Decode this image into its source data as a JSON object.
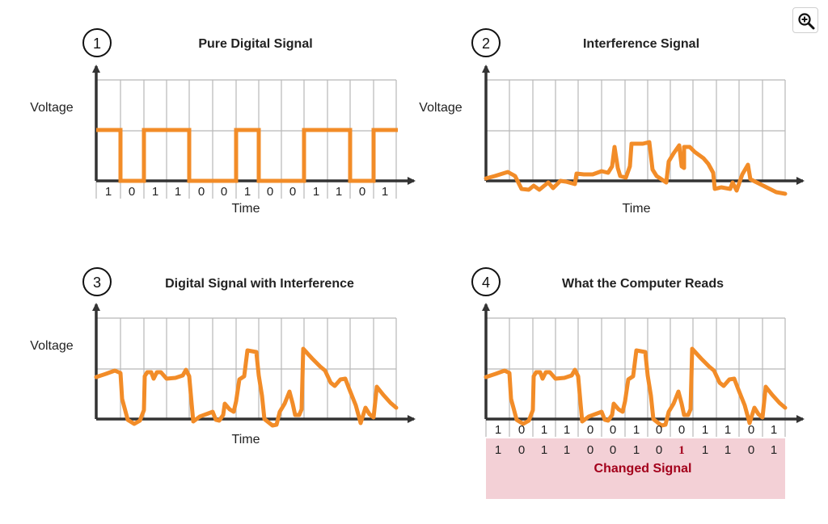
{
  "colors": {
    "signal": "#f28c28",
    "grid": "#b8b8b8",
    "axis": "#333333",
    "changed_bg": "#f3d0d6",
    "changed_text": "#a3001b"
  },
  "zoom": {
    "icon": "zoom-in-icon"
  },
  "panels": [
    {
      "number": "1",
      "title": "Pure Digital Signal",
      "ylabel": "Voltage",
      "xlabel": "Time",
      "bits": [
        "1",
        "0",
        "1",
        "1",
        "0",
        "0",
        "1",
        "0",
        "0",
        "1",
        "1",
        "0",
        "1"
      ]
    },
    {
      "number": "2",
      "title": "Interference Signal",
      "ylabel": "Voltage",
      "xlabel": "Time"
    },
    {
      "number": "3",
      "title": "Digital Signal with Interference",
      "ylabel": "Voltage",
      "xlabel": "Time"
    },
    {
      "number": "4",
      "title": "What the Computer Reads",
      "bits": [
        "1",
        "0",
        "1",
        "1",
        "0",
        "0",
        "1",
        "0",
        "0",
        "1",
        "1",
        "0",
        "1"
      ],
      "read_bits": [
        "1",
        "0",
        "1",
        "1",
        "0",
        "0",
        "1",
        "0",
        "1",
        "1",
        "1",
        "0",
        "1"
      ],
      "changed_label": "Changed Signal"
    }
  ]
}
